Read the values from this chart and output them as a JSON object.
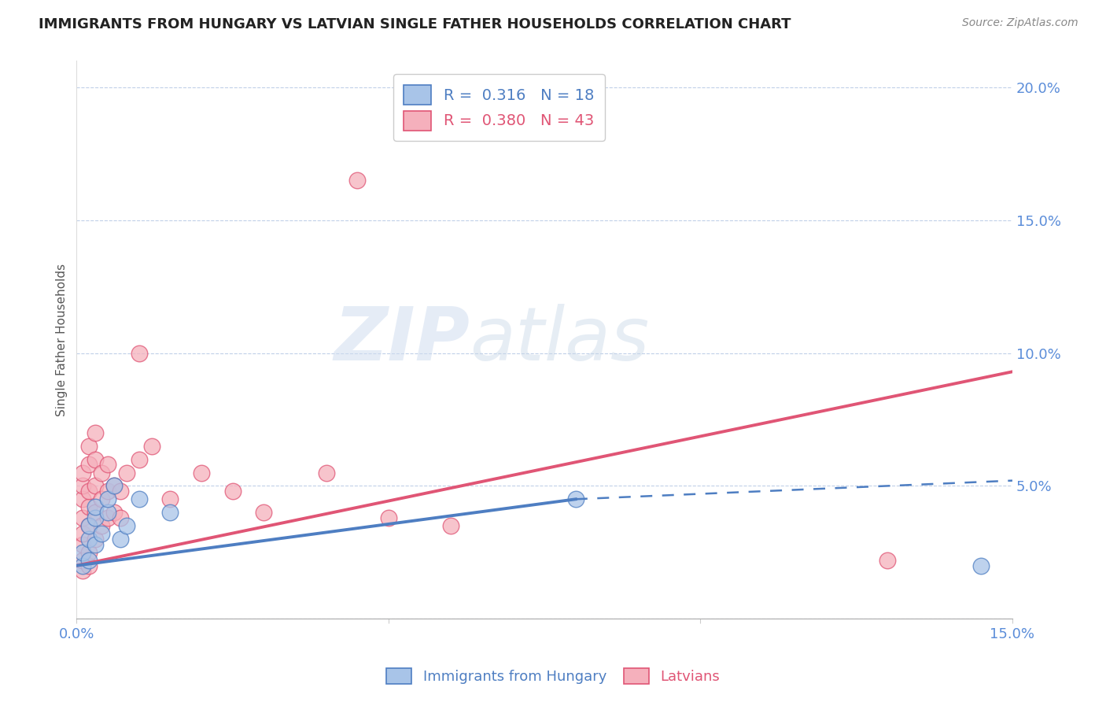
{
  "title": "IMMIGRANTS FROM HUNGARY VS LATVIAN SINGLE FATHER HOUSEHOLDS CORRELATION CHART",
  "source": "Source: ZipAtlas.com",
  "ylabel": "Single Father Households",
  "x_min": 0.0,
  "x_max": 0.15,
  "y_min": 0.0,
  "y_max": 0.21,
  "legend_R_blue": "R =  0.316",
  "legend_N_blue": "N = 18",
  "legend_R_pink": "R =  0.380",
  "legend_N_pink": "N = 43",
  "blue_color": "#a8c4e8",
  "pink_color": "#f5b0bc",
  "blue_line_color": "#4e7ec2",
  "pink_line_color": "#e05575",
  "blue_scatter": [
    [
      0.001,
      0.02
    ],
    [
      0.001,
      0.025
    ],
    [
      0.002,
      0.022
    ],
    [
      0.002,
      0.03
    ],
    [
      0.002,
      0.035
    ],
    [
      0.003,
      0.028
    ],
    [
      0.003,
      0.038
    ],
    [
      0.003,
      0.042
    ],
    [
      0.004,
      0.032
    ],
    [
      0.005,
      0.04
    ],
    [
      0.005,
      0.045
    ],
    [
      0.006,
      0.05
    ],
    [
      0.007,
      0.03
    ],
    [
      0.008,
      0.035
    ],
    [
      0.01,
      0.045
    ],
    [
      0.015,
      0.04
    ],
    [
      0.08,
      0.045
    ],
    [
      0.145,
      0.02
    ]
  ],
  "pink_scatter": [
    [
      0.001,
      0.018
    ],
    [
      0.001,
      0.022
    ],
    [
      0.001,
      0.028
    ],
    [
      0.001,
      0.032
    ],
    [
      0.001,
      0.038
    ],
    [
      0.001,
      0.045
    ],
    [
      0.001,
      0.05
    ],
    [
      0.001,
      0.055
    ],
    [
      0.002,
      0.02
    ],
    [
      0.002,
      0.025
    ],
    [
      0.002,
      0.035
    ],
    [
      0.002,
      0.042
    ],
    [
      0.002,
      0.048
    ],
    [
      0.002,
      0.058
    ],
    [
      0.002,
      0.065
    ],
    [
      0.003,
      0.03
    ],
    [
      0.003,
      0.04
    ],
    [
      0.003,
      0.05
    ],
    [
      0.003,
      0.06
    ],
    [
      0.003,
      0.07
    ],
    [
      0.004,
      0.045
    ],
    [
      0.004,
      0.055
    ],
    [
      0.004,
      0.035
    ],
    [
      0.005,
      0.038
    ],
    [
      0.005,
      0.048
    ],
    [
      0.005,
      0.058
    ],
    [
      0.006,
      0.04
    ],
    [
      0.006,
      0.05
    ],
    [
      0.007,
      0.038
    ],
    [
      0.007,
      0.048
    ],
    [
      0.008,
      0.055
    ],
    [
      0.01,
      0.06
    ],
    [
      0.01,
      0.1
    ],
    [
      0.012,
      0.065
    ],
    [
      0.015,
      0.045
    ],
    [
      0.02,
      0.055
    ],
    [
      0.025,
      0.048
    ],
    [
      0.03,
      0.04
    ],
    [
      0.04,
      0.055
    ],
    [
      0.045,
      0.165
    ],
    [
      0.05,
      0.038
    ],
    [
      0.06,
      0.035
    ],
    [
      0.13,
      0.022
    ]
  ],
  "blue_solid_line": [
    [
      0.0,
      0.02
    ],
    [
      0.08,
      0.045
    ]
  ],
  "blue_dashed_line": [
    [
      0.08,
      0.045
    ],
    [
      0.15,
      0.052
    ]
  ],
  "pink_trendline": [
    [
      0.0,
      0.02
    ],
    [
      0.15,
      0.093
    ]
  ],
  "watermark_zip": "ZIP",
  "watermark_atlas": "atlas",
  "background_color": "#ffffff",
  "grid_color": "#c0d0e8",
  "title_color": "#222222",
  "tick_color": "#5b8dd9",
  "ylabel_color": "#555555"
}
